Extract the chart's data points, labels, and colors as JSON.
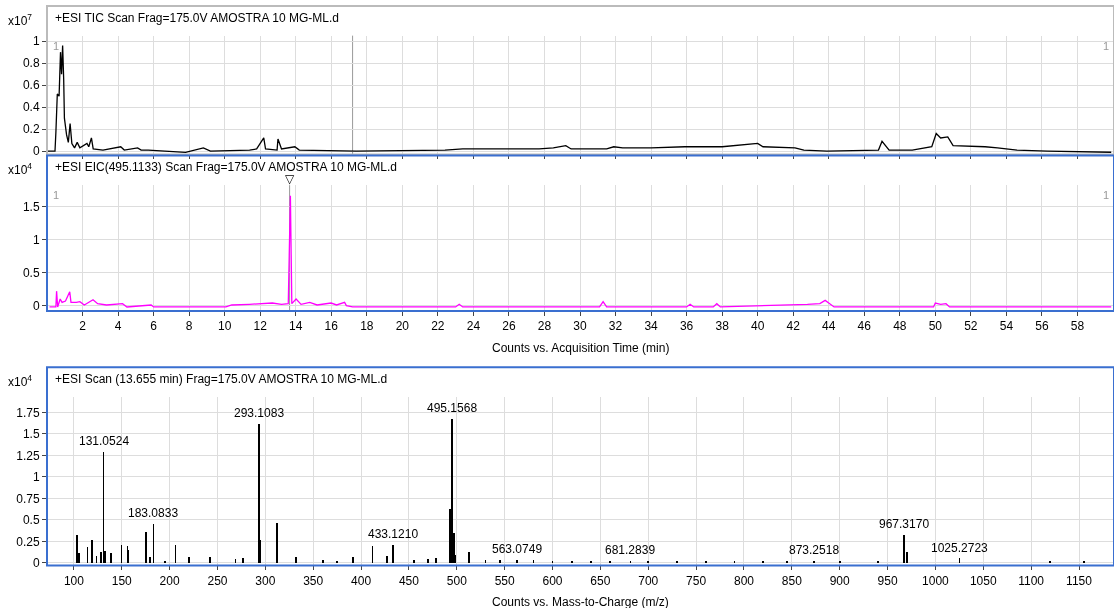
{
  "chart_data": [
    {
      "type": "line",
      "title": "+ESI TIC Scan Frag=175.0V AMOSTRA 10 MG-ML.d",
      "ylabel": "x10$^{7}$",
      "annotations": [
        "1",
        "1"
      ],
      "grid": true,
      "tick_labels": "y",
      "xlim": [
        0,
        60
      ],
      "xticks": [
        2,
        4,
        6,
        8,
        10,
        12,
        14,
        16,
        18,
        20,
        22,
        24,
        26,
        28,
        30,
        32,
        34,
        36,
        38,
        40,
        42,
        44,
        46,
        48,
        50,
        52,
        54,
        56,
        58
      ],
      "ylim": [
        -0.03,
        1.05
      ],
      "yticks": [
        0,
        0.2,
        0.4,
        0.6,
        0.8,
        1
      ],
      "ref_lines": [
        {
          "axis": "x",
          "value": 17.2,
          "color": "#999999"
        }
      ],
      "series": [
        {
          "color": "#000000",
          "x": [
            0.04,
            0.45,
            0.5,
            0.58,
            0.68,
            0.76,
            0.82,
            0.88,
            0.94,
            0.98,
            1.1,
            1.2,
            1.3,
            1.4,
            1.55,
            1.7,
            1.85,
            2.25,
            2.35,
            2.5,
            2.6,
            3.15,
            4.15,
            4.35,
            5.1,
            5.3,
            5.7,
            7.8,
            8.8,
            9.2,
            11.4,
            11.8,
            12.2,
            12.3,
            12.95,
            13.0,
            13.2,
            13.95,
            14.2,
            17.4,
            22.4,
            23.4,
            27.7,
            28.5,
            29.2,
            29.5,
            31.5,
            31.9,
            32.4,
            34.0,
            35.9,
            37.0,
            38.0,
            40.0,
            40.3,
            42.1,
            42.6,
            43.9,
            46.8,
            47.0,
            47.4,
            48.7,
            49.8,
            50.05,
            50.3,
            50.7,
            51.0,
            52.8,
            53.5,
            54.6,
            56.3,
            59.9
          ],
          "values": [
            0,
            0,
            0.17,
            0.52,
            0.5,
            0.9,
            0.7,
            0.96,
            0.65,
            0.3,
            0.15,
            0.08,
            0.25,
            0.07,
            0.03,
            0.08,
            0.03,
            0.07,
            0.04,
            0.12,
            0.02,
            0.01,
            0.04,
            0.01,
            0.03,
            0.01,
            0.01,
            -0.01,
            0.03,
            0,
            0.01,
            0.02,
            0.12,
            0.02,
            0.01,
            0.11,
            0.02,
            0.04,
            0.01,
            0,
            0.01,
            0.02,
            0.02,
            0.03,
            0.05,
            0.02,
            0.02,
            0.04,
            0.03,
            0.03,
            0.04,
            0.04,
            0.04,
            0.07,
            0.04,
            0.03,
            0.01,
            0,
            0.01,
            0.09,
            0.01,
            0.01,
            0.04,
            0.16,
            0.12,
            0.13,
            0.05,
            0.04,
            0.03,
            0.01,
            0,
            -0.01
          ]
        }
      ]
    },
    {
      "type": "line",
      "title": "+ESI EIC(495.1133) Scan Frag=175.0V AMOSTRA 10 MG-ML.d",
      "ylabel": "x10$^{4}$",
      "xlabel": "Counts vs. Acquisition Time (min)",
      "annotations": [
        "1",
        "1",
        {
          "text": "▽",
          "x": 13.655,
          "y": 1.75
        }
      ],
      "grid": true,
      "xlim": [
        0,
        60
      ],
      "xticks": [
        2,
        4,
        6,
        8,
        10,
        12,
        14,
        16,
        18,
        20,
        22,
        24,
        26,
        28,
        30,
        32,
        34,
        36,
        38,
        40,
        42,
        44,
        46,
        48,
        50,
        52,
        54,
        56,
        58
      ],
      "ylim": [
        -0.08,
        1.83
      ],
      "yticks": [
        0,
        0.5,
        1,
        1.5
      ],
      "ref_lines": [
        {
          "axis": "x",
          "value": 13.655,
          "color": "#999999"
        }
      ],
      "series": [
        {
          "color": "#ff00ff",
          "x": [
            0.14,
            0.5,
            0.54,
            0.6,
            0.74,
            0.85,
            1.04,
            1.28,
            1.35,
            1.65,
            1.85,
            2.1,
            2.59,
            2.85,
            3.35,
            4.25,
            4.5,
            5.86,
            6.0,
            10.07,
            10.4,
            11.4,
            12.68,
            13.2,
            13.58,
            13.7,
            13.78,
            14.02,
            14.3,
            14.79,
            15.2,
            15.99,
            16.3,
            16.75,
            16.85,
            17.2,
            23.0,
            23.2,
            23.4,
            31.1,
            31.3,
            31.5,
            36.0,
            36.2,
            36.4,
            37.5,
            37.7,
            37.9,
            42.8,
            43.5,
            43.8,
            44.0,
            44.3,
            49.9,
            50.0,
            50.3,
            50.6,
            50.8,
            59.9
          ],
          "values": [
            -0.02,
            -0.02,
            0.22,
            -0.02,
            0.1,
            0.05,
            0.07,
            0.21,
            0.05,
            0.05,
            0.06,
            0.01,
            0.09,
            0.03,
            0.01,
            0.03,
            -0.02,
            0.01,
            -0.02,
            -0.02,
            0.01,
            0.02,
            0.04,
            0.02,
            0.03,
            1.67,
            0.03,
            0.1,
            0.02,
            0.05,
            0.01,
            0.04,
            0.01,
            0.05,
            0,
            -0.02,
            -0.02,
            0.02,
            -0.02,
            -0.02,
            0.06,
            -0.02,
            -0.02,
            0.02,
            -0.02,
            -0.02,
            0.03,
            -0.02,
            0.02,
            0.03,
            0.08,
            0.04,
            -0.02,
            -0.02,
            0.04,
            0.02,
            0.03,
            -0.02,
            -0.02
          ]
        }
      ]
    },
    {
      "type": "bar",
      "title": "+ESI Scan (13.655 min) Frag=175.0V AMOSTRA 10 MG-ML.d",
      "ylabel": "x10$^{4}$",
      "xlabel": "Counts vs. Mass-to-Charge (m/z)",
      "grid": true,
      "xlim": [
        71.9,
        1185.5
      ],
      "xticks": [
        100,
        150,
        200,
        250,
        300,
        350,
        400,
        450,
        500,
        550,
        600,
        650,
        700,
        750,
        800,
        850,
        900,
        950,
        1000,
        1050,
        1100,
        1150
      ],
      "ylim": [
        -0.03,
        1.93
      ],
      "yticks": [
        0,
        0.25,
        0.5,
        0.75,
        1,
        1.25,
        1.5,
        1.75
      ],
      "annotations": [
        {
          "text": "131.0524",
          "x": 131.0524,
          "y": 1.29
        },
        {
          "text": "183.0833",
          "x": 183.0833,
          "y": 0.45
        },
        {
          "text": "293.1083",
          "x": 293.1083,
          "y": 1.62
        },
        {
          "text": "433.1210",
          "x": 433.121,
          "y": 0.21
        },
        {
          "text": "495.1568",
          "x": 495.1568,
          "y": 1.67
        },
        {
          "text": "563.0749",
          "x": 563.0749,
          "y": 0.03
        },
        {
          "text": "681.2839",
          "x": 681.2839,
          "y": 0.02
        },
        {
          "text": "873.2518",
          "x": 873.2518,
          "y": 0.02
        },
        {
          "text": "967.3170",
          "x": 967.317,
          "y": 0.32
        },
        {
          "text": "1025.2723",
          "x": 1025.2723,
          "y": 0.05
        }
      ],
      "series": [
        {
          "color": "#000000",
          "x": [
            103,
            105.6,
            114.2,
            119,
            123.5,
            128.4,
            131.0524,
            132.6,
            139,
            149.6,
            156,
            157,
            175.4,
            179.5,
            183.0833,
            195.1,
            206,
            220.5,
            242,
            268.7,
            276.9,
            293.1083,
            294.2,
            312.5,
            331.7,
            360,
            375,
            391.4,
            411.9,
            426.9,
            433.121,
            455,
            470,
            478,
            493,
            495.1568,
            497,
            498,
            512.5,
            530,
            545,
            563.0749,
            580,
            600,
            620,
            640,
            660,
            681.2839,
            700,
            730,
            760,
            790,
            820,
            845,
            873.2518,
            900,
            940,
            967.317,
            970.5,
            1025.2723,
            1120,
            1155
          ],
          "values": [
            0.32,
            0.11,
            0.18,
            0.27,
            0.08,
            0.13,
            1.29,
            0.14,
            0.11,
            0.21,
            0.19,
            0.15,
            0.36,
            0.07,
            0.45,
            0.01,
            0.21,
            0.07,
            0.07,
            0.04,
            0.06,
            1.62,
            0.27,
            0.46,
            0.07,
            0.03,
            0.02,
            0.07,
            0.2,
            0.08,
            0.21,
            0.03,
            0.04,
            0.06,
            0.63,
            1.67,
            0.35,
            0.09,
            0.13,
            0.03,
            0.03,
            0.03,
            0.03,
            0.02,
            0.02,
            0.02,
            0.02,
            0.02,
            0.02,
            0.02,
            0.02,
            0.02,
            0.02,
            0.02,
            0.02,
            0.01,
            0.01,
            0.32,
            0.12,
            0.05,
            0.01,
            0.01
          ]
        }
      ]
    }
  ]
}
